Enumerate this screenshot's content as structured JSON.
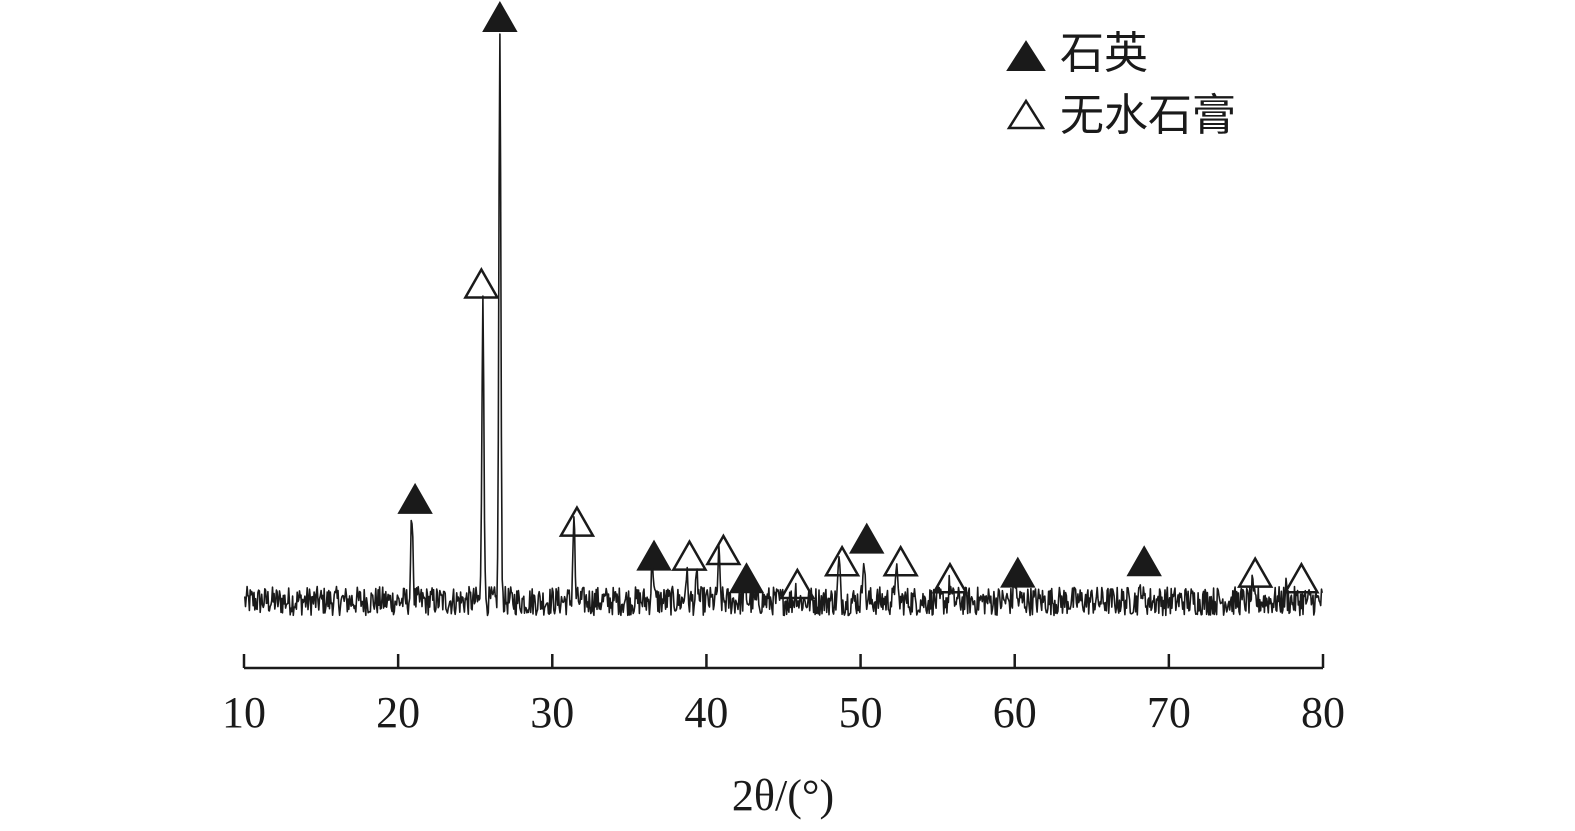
{
  "colors": {
    "ink": "#1a1a1a",
    "background": "#ffffff"
  },
  "chart_data": {
    "type": "line",
    "xlabel": "2θ/(°)",
    "ylabel": "",
    "xlim": [
      10,
      80
    ],
    "ylim": [
      0,
      100
    ],
    "x_ticks": [
      "10",
      "20",
      "30",
      "40",
      "50",
      "60",
      "70",
      "80"
    ],
    "grid": false,
    "legend_position": "top-right",
    "legend": [
      {
        "label": "石英",
        "marker": "filled-triangle"
      },
      {
        "label": "无水石膏",
        "marker": "open-triangle"
      }
    ],
    "series": [
      {
        "baseline": 6,
        "noise": 1.6,
        "peaks": [
          {
            "x": 20.9,
            "height": 16
          },
          {
            "x": 25.5,
            "height": 55
          },
          {
            "x": 26.6,
            "height": 100
          },
          {
            "x": 31.4,
            "height": 15
          },
          {
            "x": 36.5,
            "height": 8
          },
          {
            "x": 38.7,
            "height": 5
          },
          {
            "x": 39.4,
            "height": 4
          },
          {
            "x": 40.8,
            "height": 8
          },
          {
            "x": 42.5,
            "height": 4
          },
          {
            "x": 45.8,
            "height": 2
          },
          {
            "x": 48.6,
            "height": 7
          },
          {
            "x": 50.2,
            "height": 9
          },
          {
            "x": 52.3,
            "height": 7
          },
          {
            "x": 55.8,
            "height": 3
          },
          {
            "x": 60.0,
            "height": 4
          },
          {
            "x": 68.2,
            "height": 3
          },
          {
            "x": 75.4,
            "height": 2
          },
          {
            "x": 77.6,
            "height": 2
          }
        ]
      }
    ],
    "annotations": [
      {
        "x": 21.1,
        "y": 24,
        "marker": "filled-triangle"
      },
      {
        "x": 26.6,
        "y": 109,
        "marker": "filled-triangle"
      },
      {
        "x": 25.4,
        "y": 62,
        "marker": "open-triangle"
      },
      {
        "x": 31.6,
        "y": 20,
        "marker": "open-triangle"
      },
      {
        "x": 36.6,
        "y": 14,
        "marker": "filled-triangle"
      },
      {
        "x": 38.9,
        "y": 14,
        "marker": "open-triangle"
      },
      {
        "x": 41.1,
        "y": 15,
        "marker": "open-triangle"
      },
      {
        "x": 42.6,
        "y": 10,
        "marker": "filled-triangle"
      },
      {
        "x": 45.9,
        "y": 9,
        "marker": "open-triangle"
      },
      {
        "x": 48.8,
        "y": 13,
        "marker": "open-triangle"
      },
      {
        "x": 50.4,
        "y": 17,
        "marker": "filled-triangle"
      },
      {
        "x": 52.6,
        "y": 13,
        "marker": "open-triangle"
      },
      {
        "x": 55.8,
        "y": 10,
        "marker": "open-triangle"
      },
      {
        "x": 60.2,
        "y": 11,
        "marker": "filled-triangle"
      },
      {
        "x": 68.4,
        "y": 13,
        "marker": "filled-triangle"
      },
      {
        "x": 75.6,
        "y": 11,
        "marker": "open-triangle"
      },
      {
        "x": 78.6,
        "y": 10,
        "marker": "open-triangle"
      }
    ]
  }
}
